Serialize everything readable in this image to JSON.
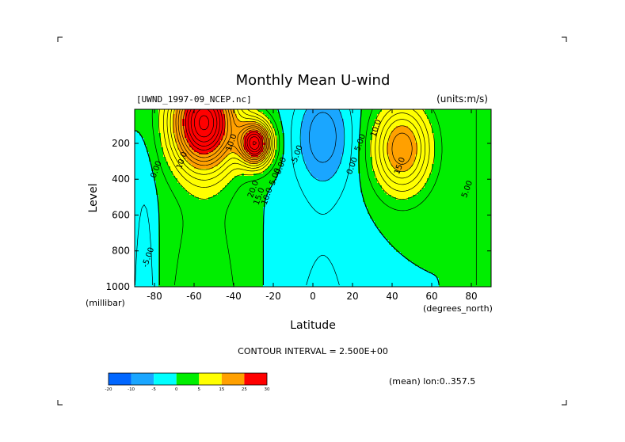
{
  "chart_data": {
    "type": "contour",
    "title": "Monthly Mean U-wind",
    "dataset": "[UWND_1997-09_NCEP.nc]",
    "units": "(units:m/s)",
    "xlabel": "Latitude",
    "xunit": "(degrees_north)",
    "ylabel": "Level",
    "yunit": "(millibar)",
    "xlim": [
      -90,
      90
    ],
    "ylim": [
      1000,
      10
    ],
    "y_inverted": true,
    "xticks": [
      -80,
      -60,
      -40,
      -20,
      0,
      20,
      40,
      60,
      80
    ],
    "xtick_labels": [
      "-80",
      "-60",
      "-40",
      "-20",
      "0",
      "20",
      "40",
      "60",
      "80"
    ],
    "yticks": [
      200,
      400,
      600,
      800,
      1000
    ],
    "ytick_labels": [
      "200",
      "400",
      "600",
      "800",
      "1000"
    ],
    "contour_interval_text": "CONTOUR INTERVAL = 2.500E+00",
    "footnote": "(mean) lon:0..357.5",
    "contour_labels": [
      {
        "text": "0.00",
        "lat": -78,
        "p": 350
      },
      {
        "text": "10.0",
        "lat": -65,
        "p": 300
      },
      {
        "text": "10.0",
        "lat": -40,
        "p": 200
      },
      {
        "text": "20.0",
        "lat": -29,
        "p": 460
      },
      {
        "text": "15.0",
        "lat": -26,
        "p": 500
      },
      {
        "text": "10.0",
        "lat": -22,
        "p": 500
      },
      {
        "text": "5.00",
        "lat": -18,
        "p": 390
      },
      {
        "text": "0.00",
        "lat": -15,
        "p": 330
      },
      {
        "text": "-5.00",
        "lat": -7,
        "p": 270
      },
      {
        "text": "-5.00",
        "lat": -82,
        "p": 840
      },
      {
        "text": "5.00",
        "lat": 25,
        "p": 200
      },
      {
        "text": "0.00",
        "lat": 21,
        "p": 330
      },
      {
        "text": "10.0",
        "lat": 33,
        "p": 120
      },
      {
        "text": "15.0",
        "lat": 45,
        "p": 330
      },
      {
        "text": "5.00",
        "lat": 79,
        "p": 460
      }
    ],
    "colorbar": {
      "levels": [
        -20,
        -10,
        -5,
        0,
        5,
        15,
        25,
        30
      ],
      "labels": [
        "-20",
        "-10",
        "-5",
        "0",
        "5",
        "15",
        "25",
        "30"
      ],
      "colors": [
        "#0066ff",
        "#1aa6ff",
        "#00ffff",
        "#00ee00",
        "#ffff00",
        "#ffa000",
        "#ff0000"
      ]
    },
    "fields": [
      {
        "name": "sh_polar_jet",
        "lat": -55,
        "p": 80,
        "peak": 38
      },
      {
        "name": "sh_subtropical_jet",
        "lat": -29,
        "p": 200,
        "peak": 33
      },
      {
        "name": "nh_jet",
        "lat": 45,
        "p": 230,
        "peak": 20
      },
      {
        "name": "tropical_easterlies",
        "lat": 5,
        "p": 150,
        "peak": -9
      }
    ]
  }
}
